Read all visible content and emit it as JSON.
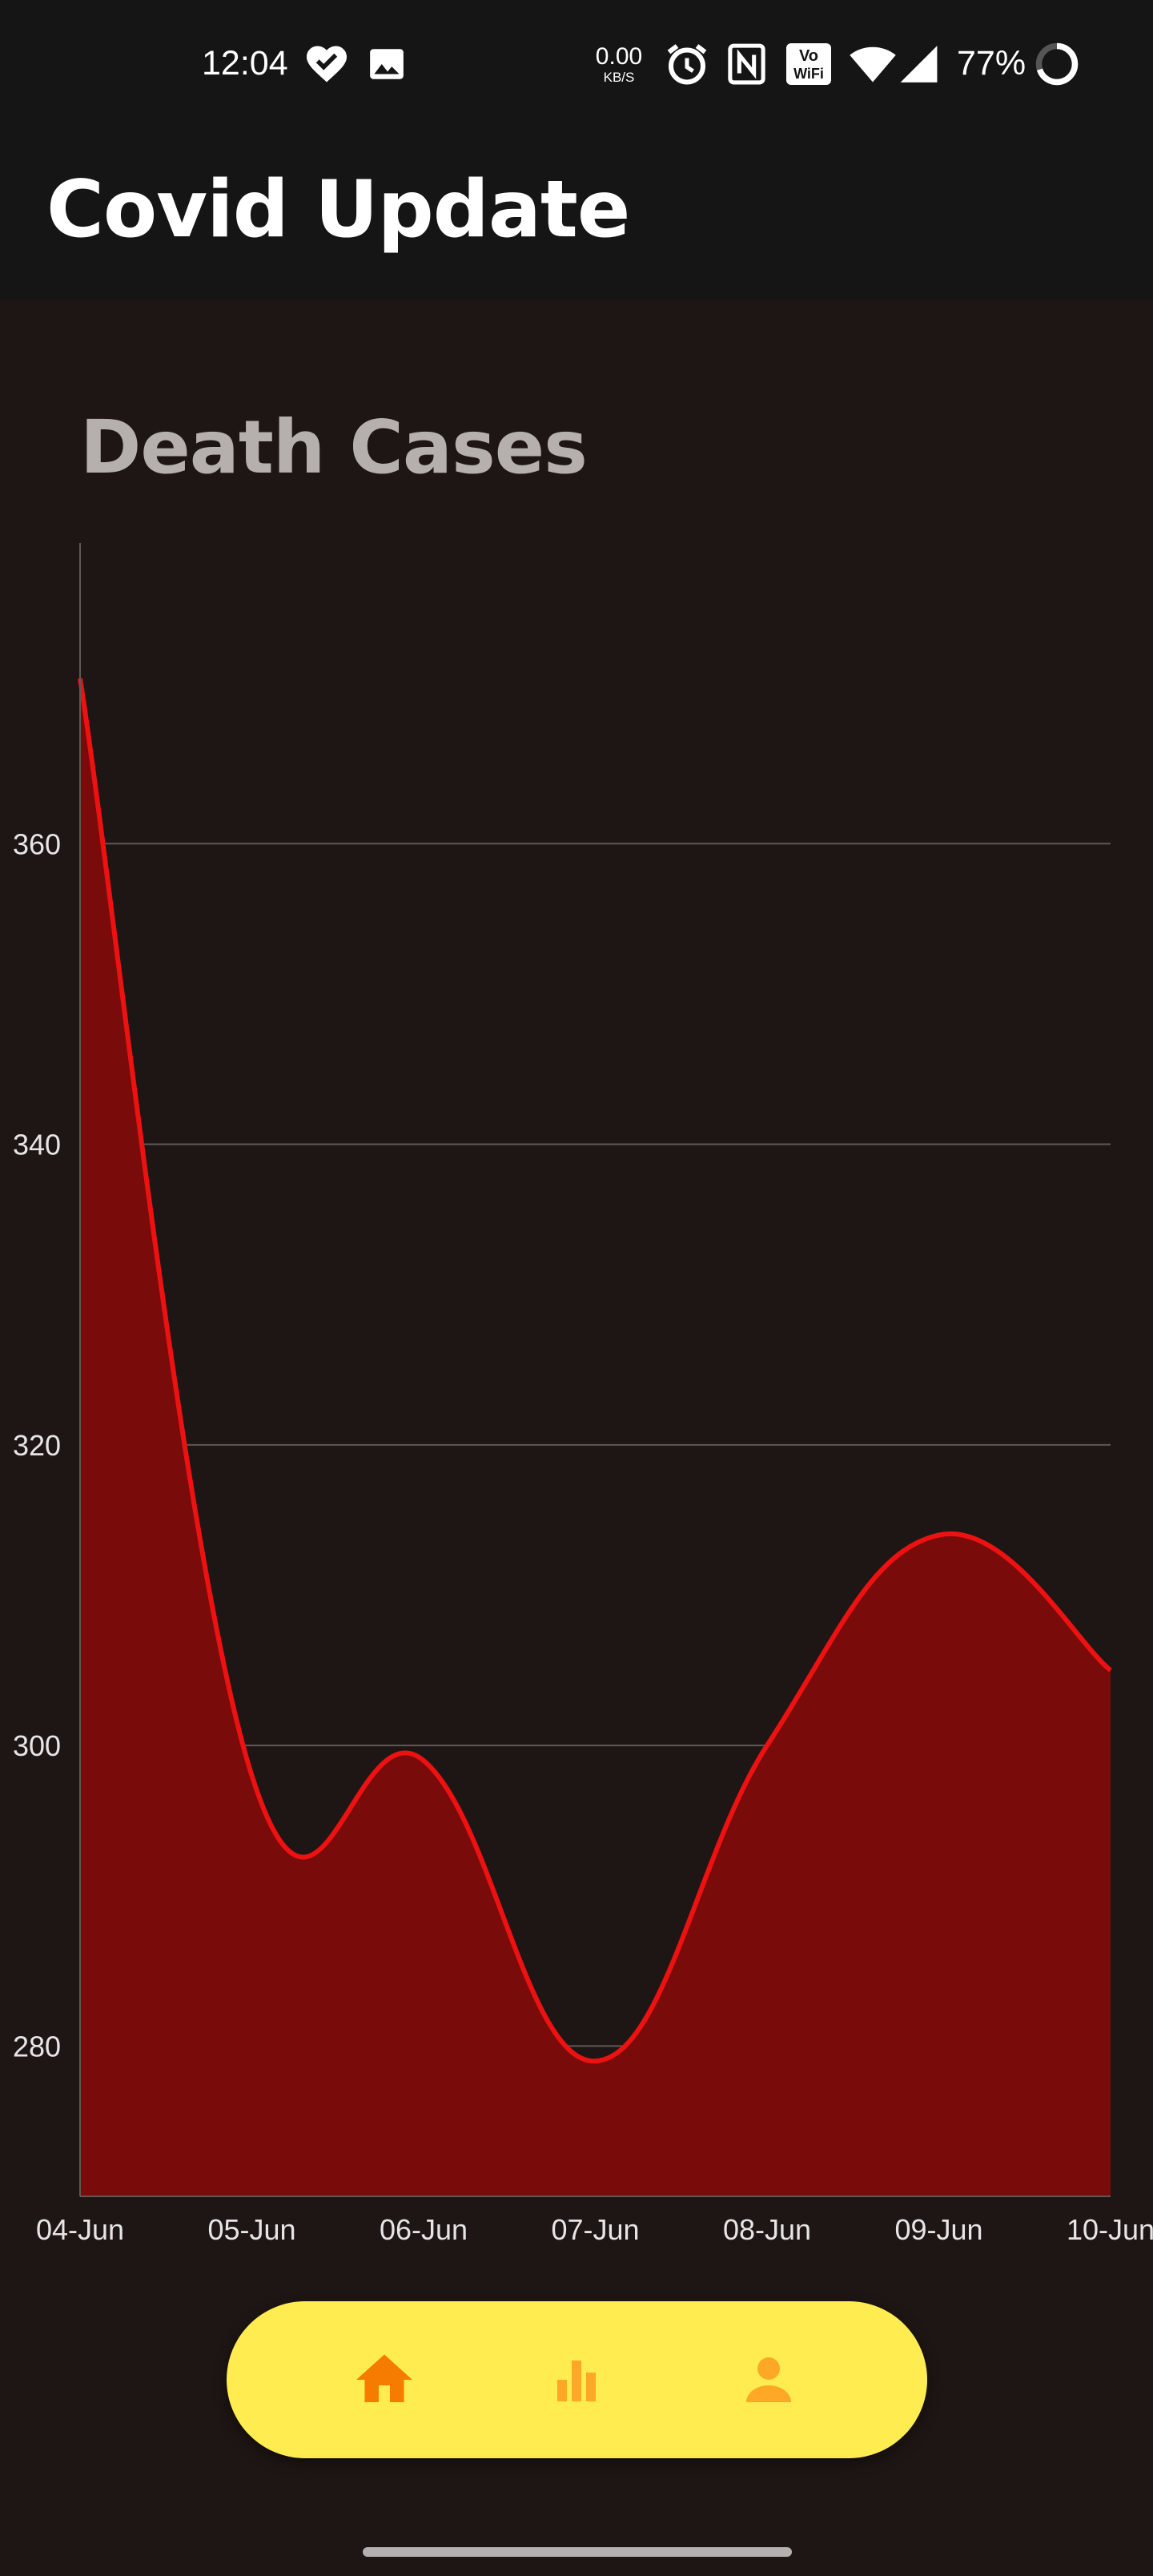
{
  "status_bar": {
    "time": "12:04",
    "net_speed_value": "0.00",
    "net_speed_unit": "KB/S",
    "battery": "77%",
    "icons": [
      "heart-check-icon",
      "gallery-icon",
      "alarm-icon",
      "nfc-icon",
      "vowifi-icon",
      "wifi-icon",
      "signal-icon",
      "battery-ring-icon"
    ]
  },
  "app": {
    "title": "Covid Update"
  },
  "chart_card": {
    "title": "Death Cases"
  },
  "chart_data": {
    "type": "area",
    "title": "Death Cases",
    "categories": [
      "04-Jun",
      "05-Jun",
      "06-Jun",
      "07-Jun",
      "08-Jun",
      "09-Jun",
      "10-Jun"
    ],
    "series": [
      {
        "values": [
          371,
          298,
          299,
          279,
          300,
          314,
          305
        ]
      }
    ],
    "yticks": [
      280,
      300,
      320,
      340,
      360
    ],
    "ylim": [
      270,
      380
    ],
    "grid": "horizontal",
    "line_color": "#ee1111",
    "fill_color": "#790c0b"
  },
  "bottom_nav": {
    "items": [
      {
        "name": "home",
        "icon": "home-icon",
        "active": true
      },
      {
        "name": "stats",
        "icon": "bar-chart-icon",
        "active": false
      },
      {
        "name": "profile",
        "icon": "person-icon",
        "active": false
      }
    ],
    "background": "#ffec50",
    "active_color": "#f57c00",
    "inactive_color": "#ffa726"
  }
}
